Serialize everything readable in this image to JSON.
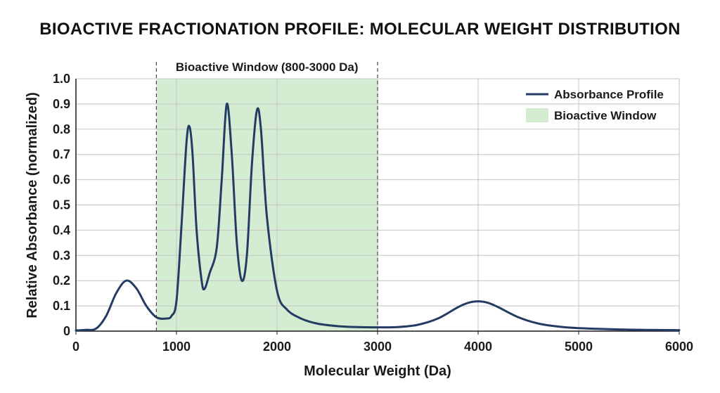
{
  "chart_data": {
    "type": "line",
    "title": "BIOACTIVE FRACTIONATION PROFILE: MOLECULAR WEIGHT DISTRIBUTION",
    "xlabel": "Molecular Weight (Da)",
    "ylabel": "Relative Absorbance (normalized)",
    "xlim": [
      0,
      6000
    ],
    "ylim": [
      0,
      1.0
    ],
    "x_ticks": [
      0,
      1000,
      2000,
      3000,
      4000,
      5000,
      6000
    ],
    "y_ticks": [
      0,
      0.1,
      0.2,
      0.3,
      0.4,
      0.5,
      0.6,
      0.7,
      0.8,
      0.9,
      1.0
    ],
    "x_tick_labels": [
      "0",
      "1000",
      "2000",
      "3000",
      "4000",
      "5000",
      "6000"
    ],
    "y_tick_labels": [
      "0",
      "0.1",
      "0.2",
      "0.3",
      "0.4",
      "0.5",
      "0.6",
      "0.7",
      "0.8",
      "0.9",
      "1.0"
    ],
    "grid": true,
    "legend_position": "top-right",
    "series": [
      {
        "name": "Absorbance Profile",
        "color": "#243b63",
        "points": [
          [
            0,
            0.003
          ],
          [
            100,
            0.005
          ],
          [
            200,
            0.01
          ],
          [
            300,
            0.06
          ],
          [
            400,
            0.15
          ],
          [
            500,
            0.2
          ],
          [
            600,
            0.17
          ],
          [
            700,
            0.1
          ],
          [
            800,
            0.055
          ],
          [
            900,
            0.05
          ],
          [
            950,
            0.06
          ],
          [
            1000,
            0.12
          ],
          [
            1050,
            0.42
          ],
          [
            1100,
            0.75
          ],
          [
            1130,
            0.81
          ],
          [
            1160,
            0.7
          ],
          [
            1200,
            0.4
          ],
          [
            1250,
            0.2
          ],
          [
            1280,
            0.168
          ],
          [
            1330,
            0.23
          ],
          [
            1400,
            0.33
          ],
          [
            1450,
            0.6
          ],
          [
            1500,
            0.9
          ],
          [
            1550,
            0.7
          ],
          [
            1600,
            0.35
          ],
          [
            1650,
            0.2
          ],
          [
            1700,
            0.3
          ],
          [
            1750,
            0.66
          ],
          [
            1800,
            0.875
          ],
          [
            1840,
            0.8
          ],
          [
            1900,
            0.45
          ],
          [
            2000,
            0.16
          ],
          [
            2100,
            0.085
          ],
          [
            2250,
            0.048
          ],
          [
            2400,
            0.03
          ],
          [
            2600,
            0.02
          ],
          [
            2800,
            0.016
          ],
          [
            3000,
            0.015
          ],
          [
            3200,
            0.016
          ],
          [
            3400,
            0.025
          ],
          [
            3600,
            0.05
          ],
          [
            3800,
            0.095
          ],
          [
            3900,
            0.112
          ],
          [
            4000,
            0.118
          ],
          [
            4100,
            0.112
          ],
          [
            4200,
            0.095
          ],
          [
            4400,
            0.055
          ],
          [
            4600,
            0.03
          ],
          [
            4800,
            0.018
          ],
          [
            5000,
            0.012
          ],
          [
            5500,
            0.006
          ],
          [
            6000,
            0.004
          ]
        ]
      }
    ],
    "regions": [
      {
        "name": "Bioactive Window",
        "label": "Bioactive Window (800-3000 Da)",
        "x_start": 800,
        "x_end": 3000,
        "color": "#d4ecd2"
      }
    ],
    "legend": [
      {
        "label": "Absorbance Profile",
        "kind": "line",
        "color": "#243b63"
      },
      {
        "label": "Bioactive Window",
        "kind": "patch",
        "color": "#d4ecd2"
      }
    ],
    "colors": {
      "grid": "#c4c4c4",
      "axis": "#1a1a1a",
      "region_border": "#444444"
    }
  }
}
